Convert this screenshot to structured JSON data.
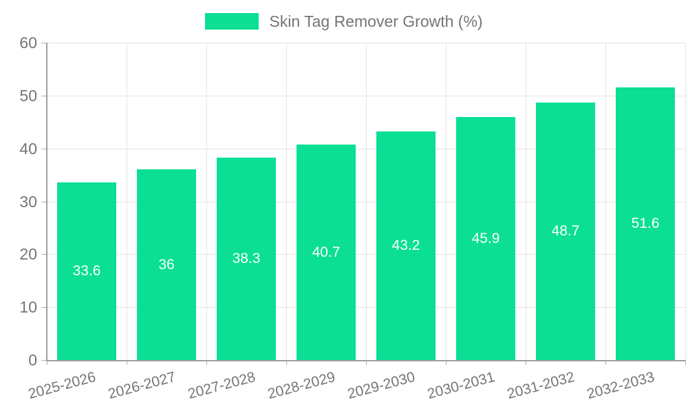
{
  "legend": {
    "label": "Skin Tag Remover Growth (%)"
  },
  "colors": {
    "bar": "#0BDF94",
    "axis_line": "#9E9E9E",
    "gridline": "#E5E5E5",
    "tick_mark": "#ADADAD",
    "tick_text": "#757575",
    "legend_text": "#757575",
    "bar_label_text": "#FFFFFF",
    "background": "#FFFFFF"
  },
  "chart_data": {
    "type": "bar",
    "title": "Skin Tag Remover Growth (%)",
    "categories": [
      "2025-2026",
      "2026-2027",
      "2027-2028",
      "2028-2029",
      "2029-2030",
      "2030-2031",
      "2031-2032",
      "2032-2033"
    ],
    "values": [
      33.6,
      36,
      38.3,
      40.7,
      43.2,
      45.9,
      48.7,
      51.6
    ],
    "value_labels": [
      "33.6",
      "36",
      "38.3",
      "40.7",
      "43.2",
      "45.9",
      "48.7",
      "51.6"
    ],
    "ytick_labels": [
      "0",
      "10",
      "20",
      "30",
      "40",
      "50",
      "60"
    ],
    "yticks": [
      0,
      10,
      20,
      30,
      40,
      50,
      60
    ],
    "xlabel": "",
    "ylabel": "",
    "ylim": [
      0,
      60
    ],
    "grid": true,
    "legend_position": "top-center",
    "bar_label_position": "inside-center",
    "x_tick_rotation_deg": -15
  }
}
